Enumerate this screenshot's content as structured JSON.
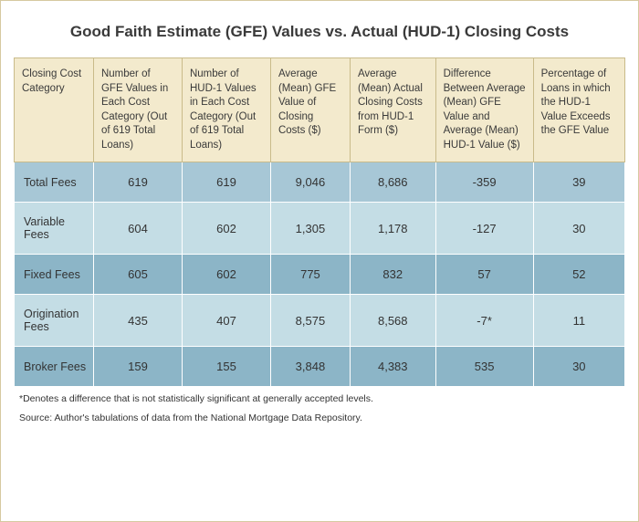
{
  "title": "Good Faith Estimate (GFE) Values vs. Actual (HUD-1) Closing Costs",
  "table": {
    "columns": [
      "Closing Cost Category",
      "Number of GFE Values in Each Cost Category (Out of 619 Total Loans)",
      "Number of HUD-1 Values in Each Cost Category (Out of 619 Total Loans)",
      "Average (Mean) GFE Value of Closing Costs ($)",
      "Average (Mean) Actual Closing Costs from HUD-1 Form ($)",
      "Difference Between Average (Mean) GFE Value and Average (Mean) HUD-1 Value ($)",
      "Percentage of Loans in which the HUD-1 Value Exceeds the GFE Value"
    ],
    "col_widths": [
      "13%",
      "14.5%",
      "14.5%",
      "13%",
      "14%",
      "16%",
      "15%"
    ],
    "header_bg": "#f3eacd",
    "header_border": "#c9bb8a",
    "row_colors": [
      "#a7c7d6",
      "#c4dde5",
      "#8cb5c7",
      "#c4dde5",
      "#8cb5c7"
    ],
    "rows": [
      {
        "label": "Total Fees",
        "c1": "619",
        "c2": "619",
        "c3": "9,046",
        "c4": "8,686",
        "c5": "-359",
        "c6": "39"
      },
      {
        "label": "Variable Fees",
        "c1": "604",
        "c2": "602",
        "c3": "1,305",
        "c4": "1,178",
        "c5": "-127",
        "c6": "30"
      },
      {
        "label": "Fixed Fees",
        "c1": "605",
        "c2": "602",
        "c3": "775",
        "c4": "832",
        "c5": "57",
        "c6": "52"
      },
      {
        "label": "Origination Fees",
        "c1": "435",
        "c2": "407",
        "c3": "8,575",
        "c4": "8,568",
        "c5": "-7*",
        "c6": "11"
      },
      {
        "label": "Broker Fees",
        "c1": "159",
        "c2": "155",
        "c3": "3,848",
        "c4": "4,383",
        "c5": "535",
        "c6": "30"
      }
    ]
  },
  "footnote1": "*Denotes a difference that is not statistically significant at generally accepted levels.",
  "footnote2": "Source:  Author's tabulations of data from the National Mortgage Data Repository."
}
